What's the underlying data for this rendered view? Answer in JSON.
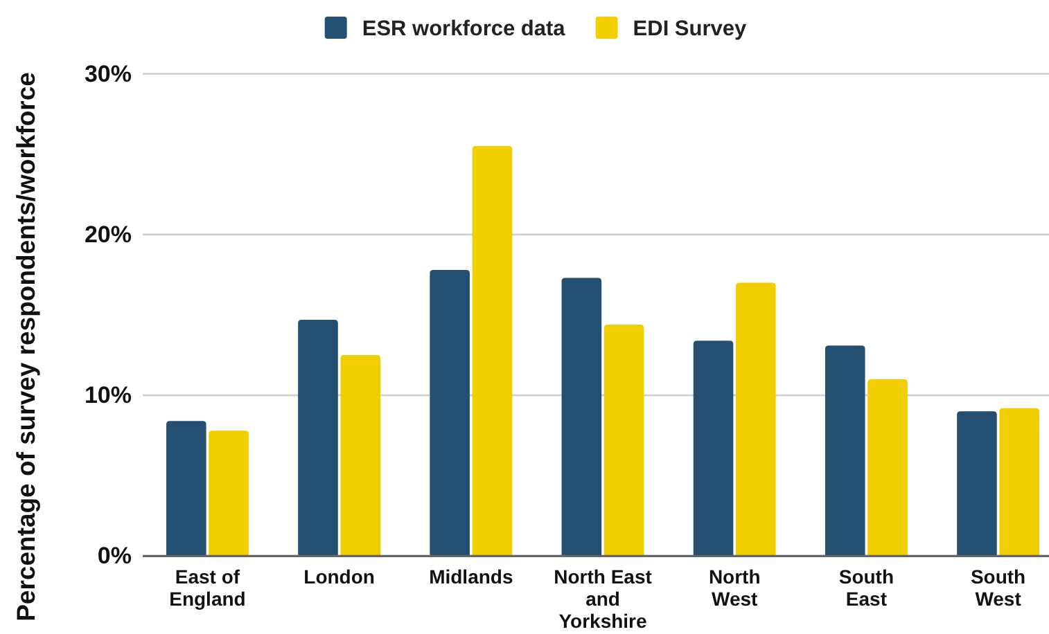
{
  "chart_data": {
    "type": "bar",
    "ylabel": "Percentage of survey respondents/workforce",
    "categories": [
      "East of England",
      "London",
      "Midlands",
      "North East and Yorkshire",
      "North West",
      "South East",
      "South West"
    ],
    "series": [
      {
        "name": "ESR workforce data",
        "color": "#254f70",
        "values": [
          8.4,
          14.7,
          17.8,
          17.3,
          13.4,
          13.1,
          9.0
        ]
      },
      {
        "name": "EDI Survey",
        "color": "#f1ce00",
        "values": [
          7.8,
          12.5,
          25.5,
          14.4,
          17.0,
          11.0,
          9.2
        ]
      }
    ],
    "ylim": [
      0,
      30
    ],
    "yticks": [
      {
        "value": 0,
        "label": "0%"
      },
      {
        "value": 10,
        "label": "10%"
      },
      {
        "value": 20,
        "label": "20%"
      },
      {
        "value": 30,
        "label": "30%"
      }
    ],
    "grid": "y",
    "legend": "top"
  }
}
